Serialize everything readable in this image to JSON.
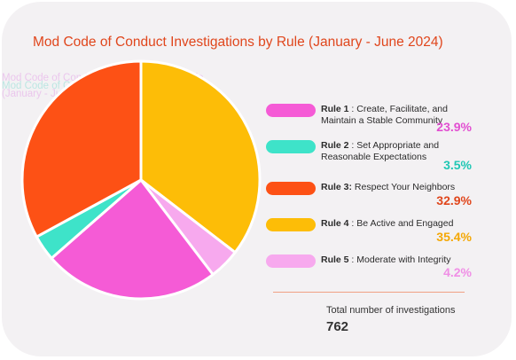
{
  "chart_data": {
    "type": "pie",
    "title": "Mod Code of Conduct Investigations by Rule  (January - June 2024)",
    "slices": [
      {
        "rule": "Rule 1",
        "name": " : Create, Facilitate, and Maintain a Stable Community",
        "value": 23.9,
        "pct_label": "23.9%",
        "color": "#f55bd6"
      },
      {
        "rule": "Rule 2",
        "name": " : Set Appropriate and Reasonable Expectations",
        "value": 3.5,
        "pct_label": "3.5%",
        "color": "#3ee3c9"
      },
      {
        "rule": "Rule 3:",
        "name": " Respect Your Neighbors",
        "value": 32.9,
        "pct_label": "32.9%",
        "color": "#fd5115"
      },
      {
        "rule": "Rule 4",
        "name": " : Be Active and Engaged",
        "value": 35.4,
        "pct_label": "35.4%",
        "color": "#fdbd07"
      },
      {
        "rule": "Rule 5",
        "name": " : Moderate with Integrity",
        "value": 4.2,
        "pct_label": "4.2%",
        "color": "#f7a9ee"
      }
    ],
    "pct_colors": [
      "#e24fd1",
      "#20c7b4",
      "#e0461c",
      "#f4a806",
      "#f08fe6"
    ],
    "slice_order_clockwise_from_top": [
      3,
      4,
      0,
      1,
      2
    ],
    "total_label": "Total number of investigations",
    "total_value": "762"
  },
  "ghost_text": {
    "line1": "Mod Code of Conduct Investigations by Rule",
    "line2": "Mod Code of Conduct Investigations by Rule",
    "line3": "(January - June 2024)"
  }
}
